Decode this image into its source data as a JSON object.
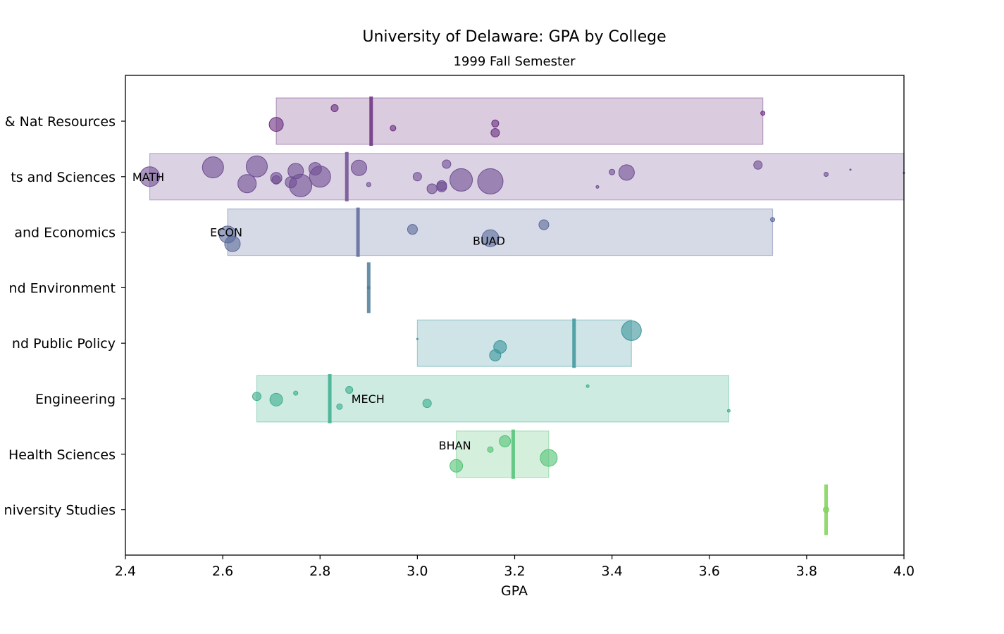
{
  "chart_data": {
    "type": "scatter",
    "title": "University of Delaware: GPA by College",
    "subtitle": "1999 Fall Semester",
    "xlabel": "GPA",
    "ylabel": "",
    "xlim": [
      2.4,
      4.0
    ],
    "xticks": [
      "2.4",
      "2.6",
      "2.8",
      "3.0",
      "3.2",
      "3.4",
      "3.6",
      "3.8",
      "4.0"
    ],
    "categories": [
      "& Nat Resources",
      "ts and Sciences",
      " and Economics",
      "nd Environment",
      "nd Public Policy",
      "Engineering",
      "Health Sciences",
      "niversity Studies"
    ],
    "colleges": [
      {
        "label": "& Nat Resources",
        "color": "#6b2f7f",
        "range": [
          2.71,
          3.71
        ],
        "mean": 2.905,
        "points": [
          [
            2.71,
            0.07,
            10
          ],
          [
            2.83,
            -0.28,
            5
          ],
          [
            2.95,
            0.15,
            4
          ],
          [
            3.16,
            0.05,
            5
          ],
          [
            3.16,
            0.25,
            6
          ],
          [
            3.71,
            -0.17,
            3
          ]
        ]
      },
      {
        "label": "ts and Sciences",
        "color": "#6f4e92",
        "range": [
          2.45,
          4.0
        ],
        "mean": 2.855,
        "points": [
          [
            2.45,
            0.0,
            14
          ],
          [
            2.58,
            -0.2,
            15
          ],
          [
            2.65,
            0.15,
            13
          ],
          [
            2.67,
            -0.22,
            15
          ],
          [
            2.71,
            0.03,
            8
          ],
          [
            2.71,
            0.07,
            6
          ],
          [
            2.74,
            0.12,
            8
          ],
          [
            2.75,
            -0.12,
            11
          ],
          [
            2.76,
            0.19,
            16
          ],
          [
            2.79,
            -0.17,
            9
          ],
          [
            2.8,
            0.0,
            15
          ],
          [
            2.88,
            -0.19,
            11
          ],
          [
            2.9,
            0.17,
            3
          ],
          [
            3.0,
            0.0,
            6
          ],
          [
            3.03,
            0.26,
            7
          ],
          [
            3.05,
            0.22,
            7
          ],
          [
            3.05,
            0.19,
            7
          ],
          [
            3.06,
            -0.27,
            6
          ],
          [
            3.09,
            0.07,
            16
          ],
          [
            3.15,
            0.1,
            18
          ],
          [
            3.37,
            0.22,
            2
          ],
          [
            3.4,
            -0.1,
            4
          ],
          [
            3.43,
            -0.09,
            11
          ],
          [
            3.7,
            -0.25,
            6
          ],
          [
            3.84,
            -0.05,
            3
          ],
          [
            3.89,
            -0.15,
            1
          ],
          [
            4.0,
            -0.08,
            1
          ]
        ]
      },
      {
        "label": " and Economics",
        "color": "#5b6a9a",
        "range": [
          2.61,
          3.73
        ],
        "mean": 2.878,
        "points": [
          [
            2.61,
            0.05,
            12
          ],
          [
            2.62,
            0.25,
            11
          ],
          [
            2.99,
            -0.06,
            7
          ],
          [
            3.15,
            0.13,
            12
          ],
          [
            3.26,
            -0.16,
            7
          ],
          [
            3.73,
            -0.27,
            3
          ]
        ]
      },
      {
        "label": "nd Environment",
        "color": "#4c7d97",
        "range": null,
        "mean": 2.9,
        "points": [
          [
            2.9,
            0.0,
            2
          ]
        ]
      },
      {
        "label": "nd Public Policy",
        "color": "#3b959b",
        "range": [
          3.0,
          3.44
        ],
        "mean": 3.322,
        "points": [
          [
            3.0,
            -0.09,
            1
          ],
          [
            3.16,
            0.26,
            8
          ],
          [
            3.17,
            0.08,
            9
          ],
          [
            3.44,
            -0.27,
            14
          ]
        ]
      },
      {
        "label": "Engineering",
        "color": "#3cae8d",
        "range": [
          2.67,
          3.64
        ],
        "mean": 2.82,
        "points": [
          [
            2.67,
            -0.05,
            6
          ],
          [
            2.71,
            0.02,
            9
          ],
          [
            2.75,
            -0.12,
            3
          ],
          [
            2.84,
            0.17,
            4
          ],
          [
            2.86,
            -0.19,
            5
          ],
          [
            3.02,
            0.1,
            6
          ],
          [
            3.35,
            -0.27,
            2
          ],
          [
            3.64,
            0.26,
            2
          ]
        ]
      },
      {
        "label": "Health Sciences",
        "color": "#52c175",
        "range": [
          3.08,
          3.27
        ],
        "mean": 3.197,
        "points": [
          [
            3.08,
            0.25,
            9
          ],
          [
            3.15,
            -0.1,
            4
          ],
          [
            3.18,
            -0.28,
            8
          ],
          [
            3.27,
            0.08,
            12
          ]
        ]
      },
      {
        "label": "niversity Studies",
        "color": "#7fd357",
        "range": null,
        "mean": 3.84,
        "points": [
          [
            3.84,
            0.0,
            4
          ]
        ]
      }
    ],
    "annotations": [
      {
        "text": "MATH",
        "x": 2.45,
        "row": 1
      },
      {
        "text": "ECON",
        "x": 2.61,
        "row": 2
      },
      {
        "text": "BUAD",
        "x": 3.15,
        "row": 2
      },
      {
        "text": "MECH",
        "x": 2.86,
        "row": 5
      },
      {
        "text": "BHAN",
        "x": 3.08,
        "row": 6
      }
    ]
  }
}
